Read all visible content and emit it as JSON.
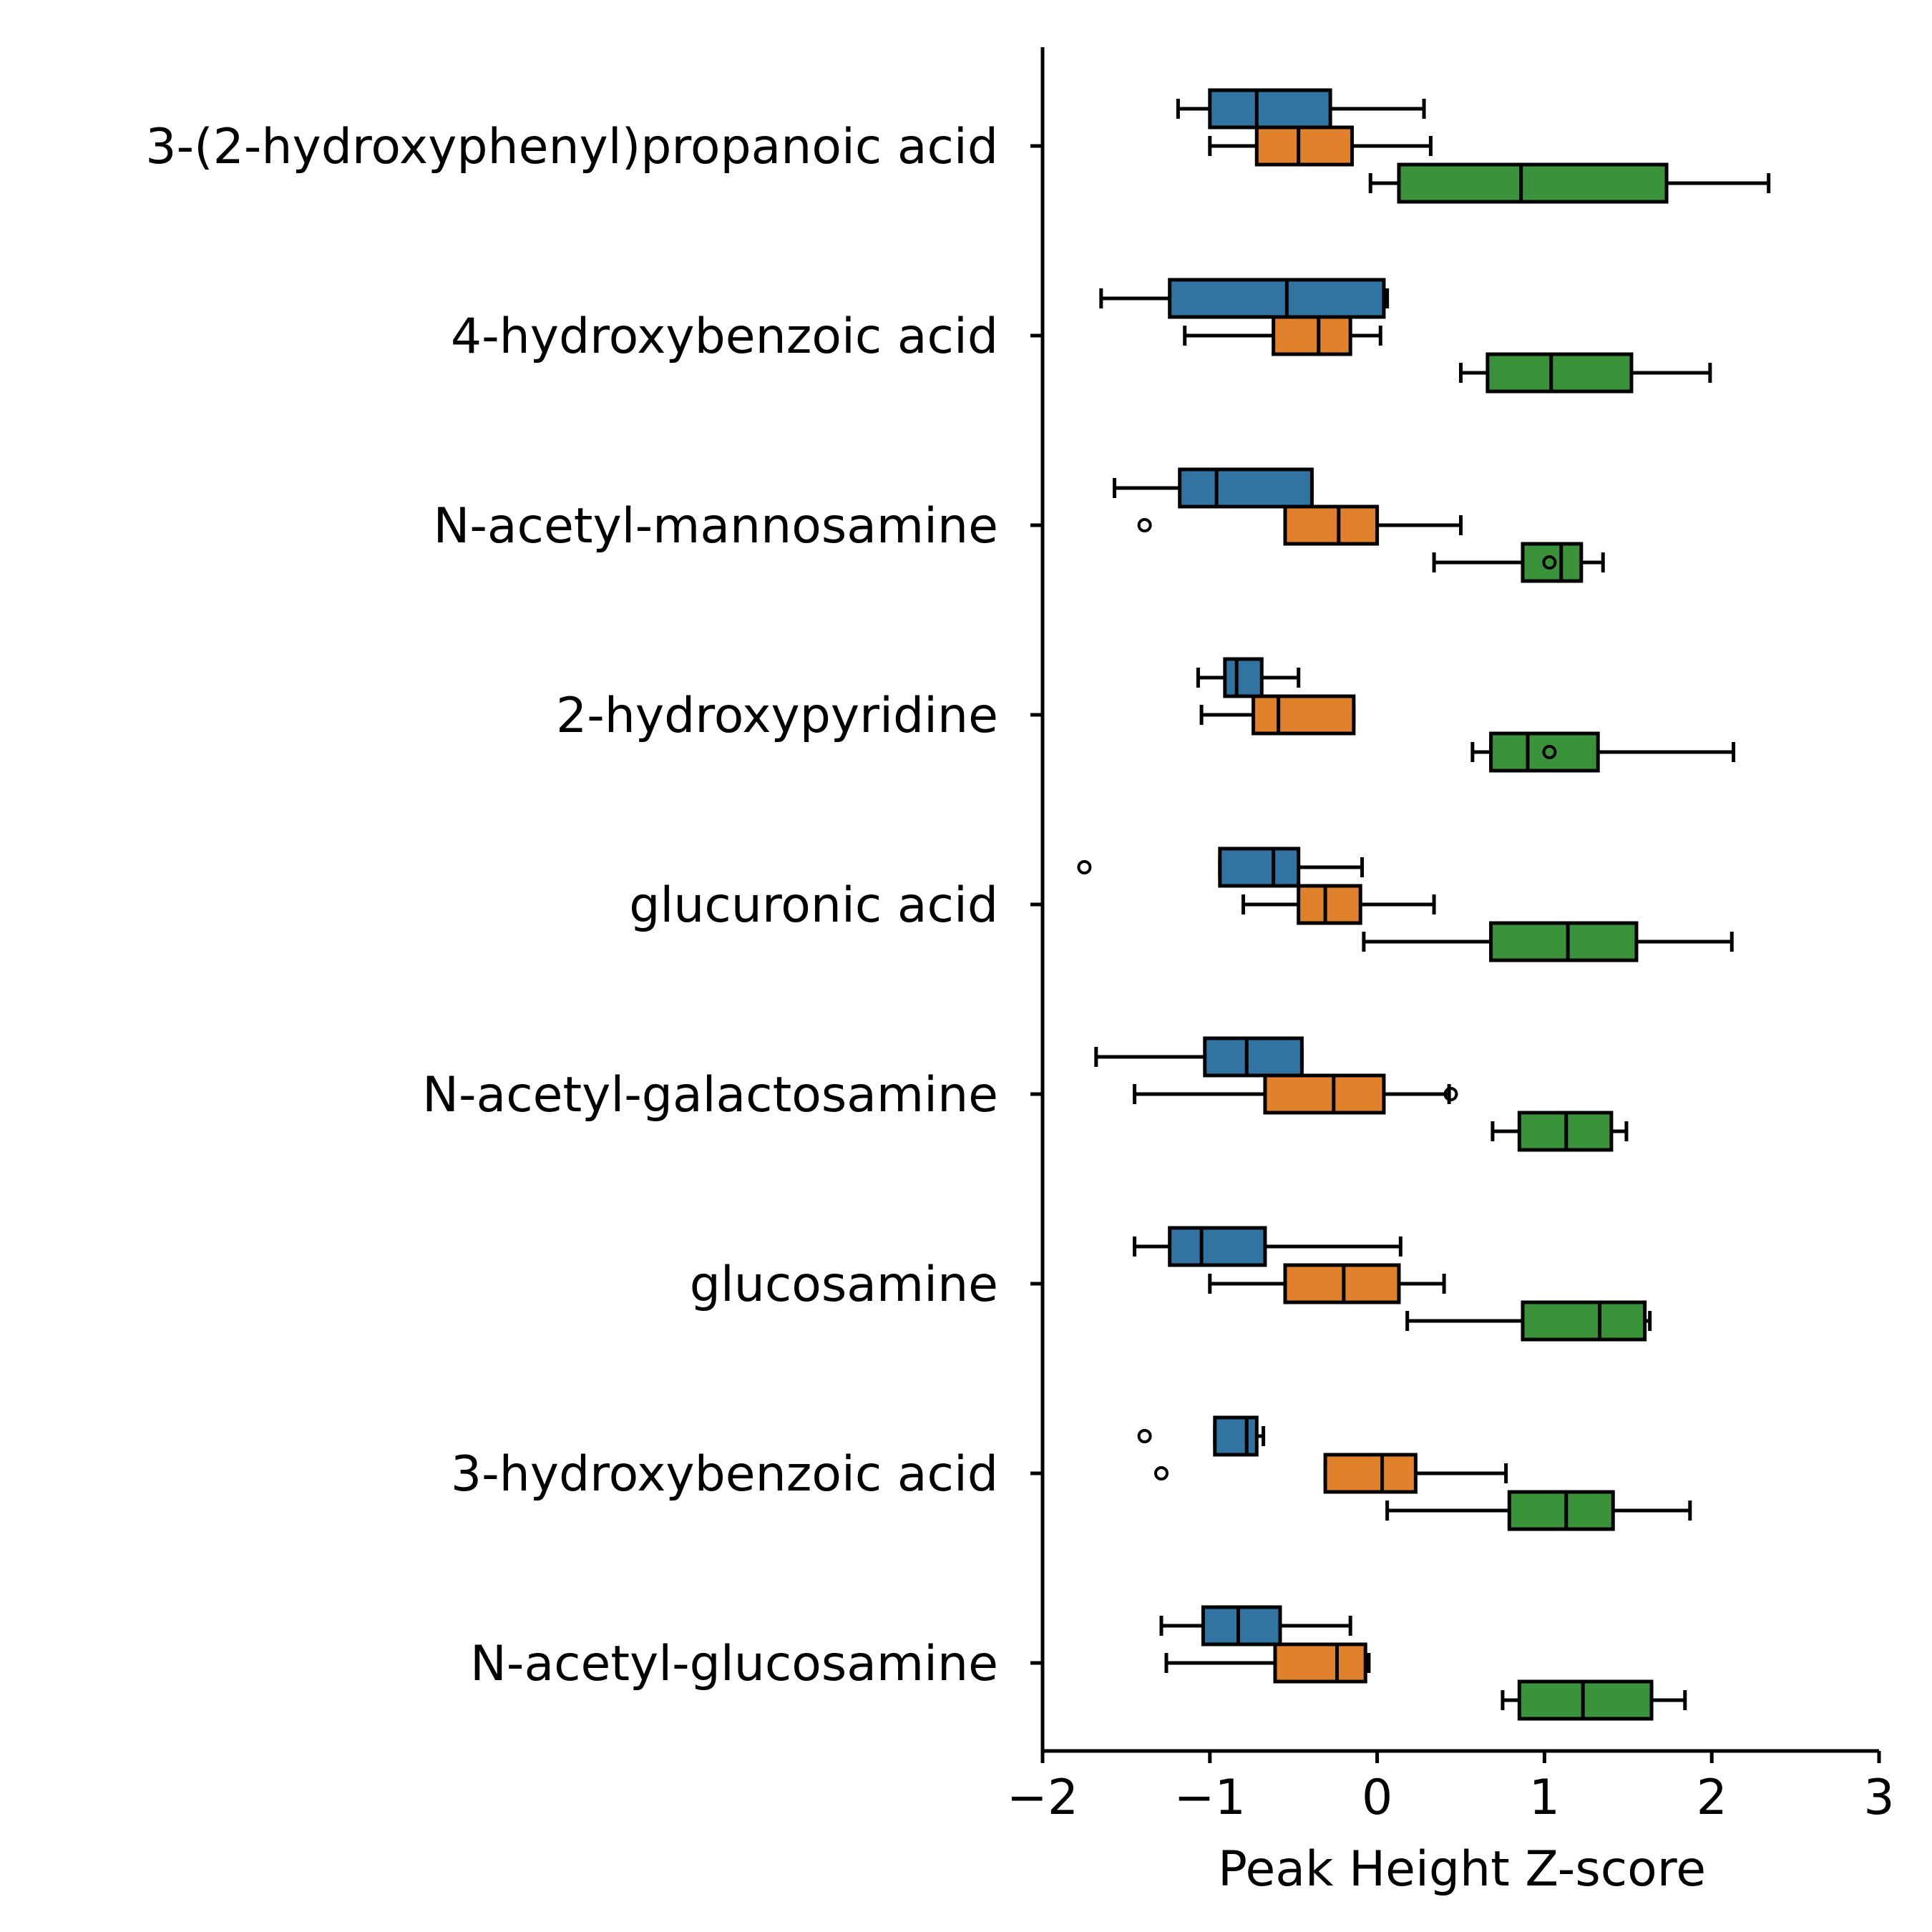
{
  "chart_data": {
    "type": "boxplot",
    "orientation": "horizontal",
    "xlabel": "Peak Height Z-score",
    "ylabel": "",
    "xlim": [
      -2,
      3
    ],
    "xticks": [
      -2,
      -1,
      0,
      1,
      2,
      3
    ],
    "xtick_labels": [
      "−2",
      "−1",
      "0",
      "1",
      "2",
      "3"
    ],
    "categories": [
      "3-(2-hydroxyphenyl)propanoic acid",
      "4-hydroxybenzoic acid",
      "N-acetyl-mannosamine",
      "2-hydroxypyridine",
      "glucuronic acid",
      "N-acetyl-galactosamine",
      "glucosamine",
      "3-hydroxybenzoic acid",
      "N-acetyl-glucosamine"
    ],
    "series": [
      {
        "color": "#3274a1",
        "boxes": [
          {
            "whislo": -1.19,
            "q1": -1.0,
            "med": -0.72,
            "q3": -0.28,
            "whishi": 0.28,
            "fliers": []
          },
          {
            "whislo": -1.65,
            "q1": -1.24,
            "med": -0.54,
            "q3": 0.04,
            "whishi": 0.06,
            "fliers": []
          },
          {
            "whislo": -1.57,
            "q1": -1.18,
            "med": -0.96,
            "q3": -0.39,
            "whishi": -0.39,
            "fliers": []
          },
          {
            "whislo": -1.07,
            "q1": -0.91,
            "med": -0.84,
            "q3": -0.69,
            "whishi": -0.47,
            "fliers": []
          },
          {
            "whislo": -0.94,
            "q1": -0.94,
            "med": -0.62,
            "q3": -0.47,
            "whishi": -0.09,
            "fliers": [
              -1.75
            ]
          },
          {
            "whislo": -1.68,
            "q1": -1.03,
            "med": -0.78,
            "q3": -0.45,
            "whishi": -0.45,
            "fliers": []
          },
          {
            "whislo": -1.45,
            "q1": -1.24,
            "med": -1.05,
            "q3": -0.67,
            "whishi": 0.14,
            "fliers": []
          },
          {
            "whislo": -0.97,
            "q1": -0.97,
            "med": -0.78,
            "q3": -0.72,
            "whishi": -0.68,
            "fliers": [
              -1.39
            ]
          },
          {
            "whislo": -1.29,
            "q1": -1.04,
            "med": -0.83,
            "q3": -0.58,
            "whishi": -0.16,
            "fliers": []
          }
        ]
      },
      {
        "color": "#e1812c",
        "boxes": [
          {
            "whislo": -1.0,
            "q1": -0.72,
            "med": -0.47,
            "q3": -0.15,
            "whishi": 0.32,
            "fliers": []
          },
          {
            "whislo": -1.15,
            "q1": -0.62,
            "med": -0.35,
            "q3": -0.16,
            "whishi": 0.02,
            "fliers": []
          },
          {
            "whislo": -0.55,
            "q1": -0.55,
            "med": -0.23,
            "q3": 0.0,
            "whishi": 0.5,
            "fliers": [
              -1.39
            ]
          },
          {
            "whislo": -1.05,
            "q1": -0.74,
            "med": -0.59,
            "q3": -0.14,
            "whishi": -0.14,
            "fliers": []
          },
          {
            "whislo": -0.8,
            "q1": -0.47,
            "med": -0.31,
            "q3": -0.1,
            "whishi": 0.34,
            "fliers": []
          },
          {
            "whislo": -1.45,
            "q1": -0.67,
            "med": -0.26,
            "q3": 0.04,
            "whishi": 0.43,
            "fliers": [
              0.44
            ]
          },
          {
            "whislo": -1.0,
            "q1": -0.55,
            "med": -0.2,
            "q3": 0.13,
            "whishi": 0.4,
            "fliers": []
          },
          {
            "whislo": -0.31,
            "q1": -0.31,
            "med": 0.03,
            "q3": 0.23,
            "whishi": 0.77,
            "fliers": [
              -1.29
            ]
          },
          {
            "whislo": -1.26,
            "q1": -0.61,
            "med": -0.24,
            "q3": -0.07,
            "whishi": -0.05,
            "fliers": []
          }
        ]
      },
      {
        "color": "#3a923a",
        "boxes": [
          {
            "whislo": -0.04,
            "q1": 0.13,
            "med": 0.86,
            "q3": 1.73,
            "whishi": 2.34,
            "fliers": []
          },
          {
            "whislo": 0.5,
            "q1": 0.66,
            "med": 1.04,
            "q3": 1.52,
            "whishi": 1.99,
            "fliers": []
          },
          {
            "whislo": 0.34,
            "q1": 0.87,
            "med": 1.1,
            "q3": 1.22,
            "whishi": 1.35,
            "fliers": [
              1.03
            ]
          },
          {
            "whislo": 0.57,
            "q1": 0.68,
            "med": 0.9,
            "q3": 1.32,
            "whishi": 2.13,
            "fliers": [
              1.03
            ]
          },
          {
            "whislo": -0.08,
            "q1": 0.68,
            "med": 1.14,
            "q3": 1.55,
            "whishi": 2.12,
            "fliers": []
          },
          {
            "whislo": 0.69,
            "q1": 0.85,
            "med": 1.13,
            "q3": 1.4,
            "whishi": 1.49,
            "fliers": []
          },
          {
            "whislo": 0.18,
            "q1": 0.87,
            "med": 1.33,
            "q3": 1.6,
            "whishi": 1.63,
            "fliers": []
          },
          {
            "whislo": 0.06,
            "q1": 0.79,
            "med": 1.13,
            "q3": 1.41,
            "whishi": 1.87,
            "fliers": []
          },
          {
            "whislo": 0.75,
            "q1": 0.85,
            "med": 1.23,
            "q3": 1.64,
            "whishi": 1.84,
            "fliers": []
          }
        ]
      }
    ],
    "legend": "none",
    "grid": false
  }
}
